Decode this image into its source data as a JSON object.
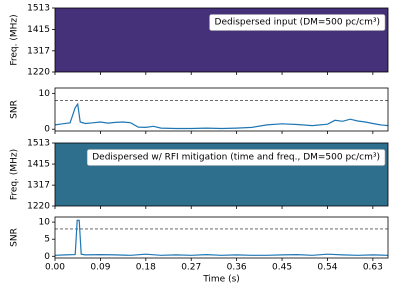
{
  "chart_data": [
    {
      "type": "heatmap",
      "ylabel": "Freq. (MHz)",
      "annotation": "Dedispersed input (DM=500 pc/cm³)",
      "color": "#45307a",
      "xlim": [
        0,
        0.66
      ],
      "ylim": [
        1220,
        1513
      ],
      "yticks": [
        1220,
        1317,
        1415,
        1513
      ]
    },
    {
      "type": "line",
      "ylabel": "SNR",
      "xlim": [
        0,
        0.66
      ],
      "ylim": [
        -0.5,
        11.5
      ],
      "yticks": [
        0,
        10
      ],
      "threshold": 8,
      "x": [
        0,
        0.015,
        0.03,
        0.04,
        0.045,
        0.05,
        0.06,
        0.075,
        0.09,
        0.105,
        0.12,
        0.135,
        0.15,
        0.165,
        0.18,
        0.195,
        0.21,
        0.24,
        0.27,
        0.3,
        0.33,
        0.36,
        0.39,
        0.42,
        0.45,
        0.48,
        0.51,
        0.54,
        0.555,
        0.57,
        0.585,
        0.6,
        0.615,
        0.63,
        0.645,
        0.66
      ],
      "series": [
        {
          "color": "#1f77b4",
          "values": [
            1.2,
            1.5,
            1.8,
            6,
            7,
            2,
            1.6,
            1.8,
            2,
            1.7,
            1.9,
            2,
            1.8,
            0.6,
            0.5,
            0.8,
            0.3,
            0.2,
            0.2,
            0.3,
            0.2,
            0.3,
            0.5,
            1.2,
            1.5,
            1.3,
            1,
            1.4,
            2.5,
            2.2,
            2.8,
            2.3,
            2,
            1.6,
            1.2,
            1.0
          ]
        }
      ]
    },
    {
      "type": "heatmap",
      "ylabel": "Freq. (MHz)",
      "annotation": "Dedispersed w/ RFI mitigation (time and freq., DM=500 pc/cm³)",
      "color": "#2e6f8e",
      "xlim": [
        0,
        0.66
      ],
      "ylim": [
        1220,
        1513
      ],
      "yticks": [
        1220,
        1317,
        1415,
        1513
      ]
    },
    {
      "type": "line",
      "ylabel": "SNR",
      "xlabel": "Time (s)",
      "xlim": [
        0,
        0.66
      ],
      "ylim": [
        -0.5,
        11.5
      ],
      "yticks": [
        0,
        5,
        10
      ],
      "threshold": 8,
      "xticks": [
        {
          "value": 0,
          "label": "0.00"
        },
        0.09,
        0.18,
        0.27,
        0.36,
        0.45,
        0.54,
        0.63
      ],
      "x": [
        0,
        0.02,
        0.04,
        0.044,
        0.048,
        0.052,
        0.06,
        0.09,
        0.12,
        0.15,
        0.18,
        0.21,
        0.24,
        0.27,
        0.3,
        0.33,
        0.36,
        0.39,
        0.42,
        0.45,
        0.48,
        0.51,
        0.54,
        0.57,
        0.6,
        0.63,
        0.66
      ],
      "series": [
        {
          "color": "#1f77b4",
          "values": [
            0.3,
            0.4,
            0.5,
            10.5,
            10.5,
            0.6,
            0.4,
            0.5,
            0.4,
            0.3,
            0.6,
            0.3,
            0.4,
            0.3,
            0.5,
            0.3,
            0.4,
            0.3,
            0.3,
            0.4,
            0.5,
            0.3,
            0.6,
            0.4,
            0.3,
            0.4,
            0.3
          ]
        }
      ]
    }
  ]
}
